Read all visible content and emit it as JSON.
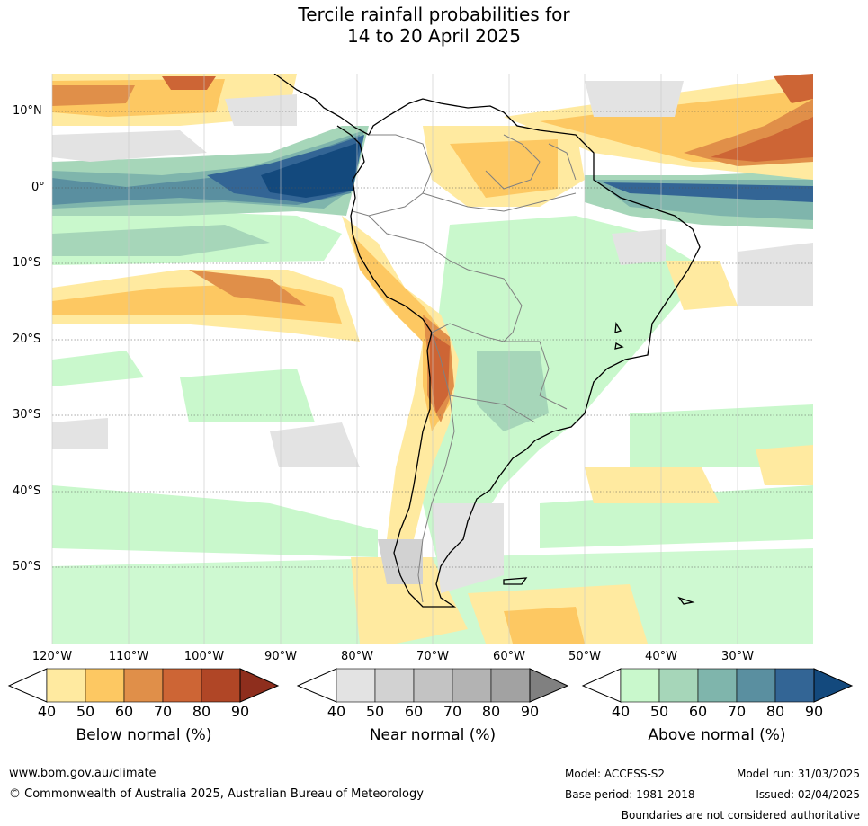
{
  "title": {
    "line1": "Tercile rainfall probabilities for",
    "line2": "14 to 20 April 2025"
  },
  "map": {
    "lat_labels": [
      "10°N",
      "0°",
      "10°S",
      "20°S",
      "30°S",
      "40°S",
      "50°S"
    ],
    "lon_labels": [
      "120°W",
      "110°W",
      "100°W",
      "90°W",
      "80°W",
      "70°W",
      "60°W",
      "50°W",
      "40°W",
      "30°W"
    ]
  },
  "colorbars": [
    {
      "label": "Below normal (%)",
      "ticks": [
        "40",
        "50",
        "60",
        "70",
        "80",
        "90"
      ],
      "colors": [
        "#ffffff",
        "#ffeaa0",
        "#fdc862",
        "#e08f49",
        "#cd6535",
        "#b04626",
        "#8e2e1d"
      ]
    },
    {
      "label": "Near normal (%)",
      "ticks": [
        "40",
        "50",
        "60",
        "70",
        "80",
        "90"
      ],
      "colors": [
        "#ffffff",
        "#e3e3e3",
        "#d2d2d2",
        "#c3c3c3",
        "#b3b3b3",
        "#a2a2a2",
        "#808080"
      ]
    },
    {
      "label": "Above normal (%)",
      "ticks": [
        "40",
        "50",
        "60",
        "70",
        "80",
        "90"
      ],
      "colors": [
        "#ffffff",
        "#c9f8cc",
        "#a6d6b9",
        "#7fb5ac",
        "#5a8fa0",
        "#336595",
        "#13497d"
      ]
    }
  ],
  "footer": {
    "website": "www.bom.gov.au/climate",
    "copyright": "© Commonwealth of Australia 2025, Australian Bureau of Meteorology",
    "model": "Model: ACCESS-S2",
    "base_period": "Base period: 1981-2018",
    "model_run": "Model run: 31/03/2025",
    "issued": "Issued: 02/04/2025",
    "disclaimer": "Boundaries are not considered authoritative"
  }
}
